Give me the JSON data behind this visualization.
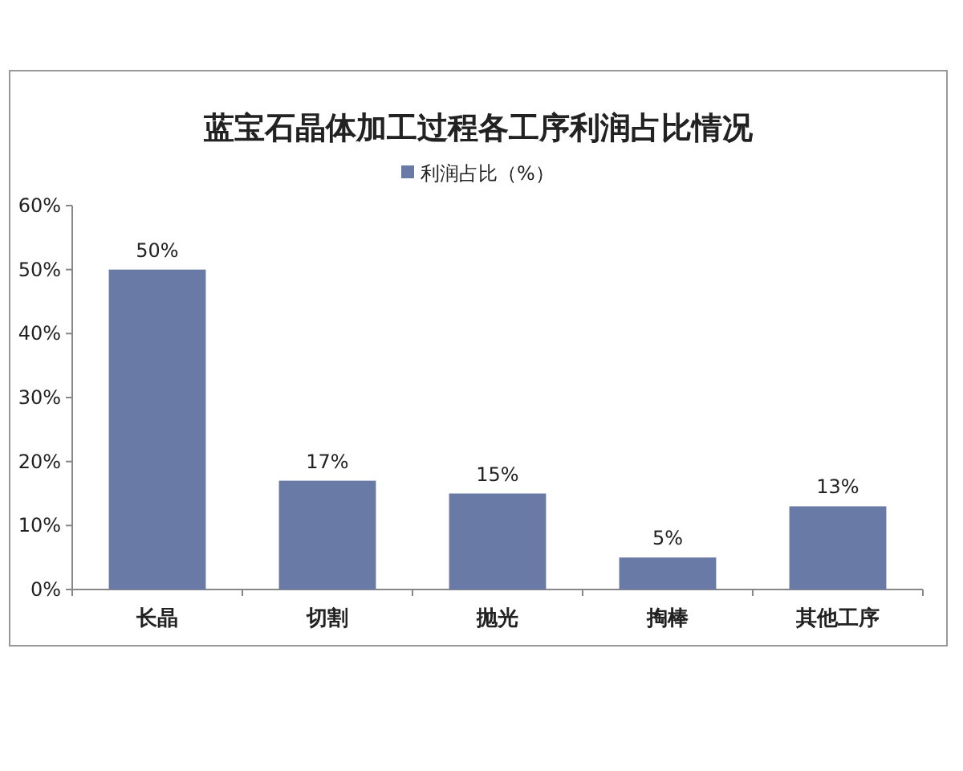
{
  "chart_data": {
    "type": "bar",
    "title": "蓝宝石晶体加工过程各工序利润占比情况",
    "categories": [
      "长晶",
      "切割",
      "抛光",
      "掏棒",
      "其他工序"
    ],
    "series": [
      {
        "name": "利润占比（%）",
        "color": "#6a7aa6",
        "values": [
          50,
          17,
          15,
          5,
          13
        ],
        "value_labels": [
          "50%",
          "17%",
          "15%",
          "5%",
          "13%"
        ]
      }
    ],
    "ylim": [
      0,
      60
    ],
    "yticks": [
      {
        "value": 0,
        "label": "0%"
      },
      {
        "value": 10,
        "label": "10%"
      },
      {
        "value": 20,
        "label": "20%"
      },
      {
        "value": 30,
        "label": "30%"
      },
      {
        "value": 40,
        "label": "40%"
      },
      {
        "value": 50,
        "label": "50%"
      },
      {
        "value": 60,
        "label": "60%"
      }
    ],
    "legend": "top"
  }
}
